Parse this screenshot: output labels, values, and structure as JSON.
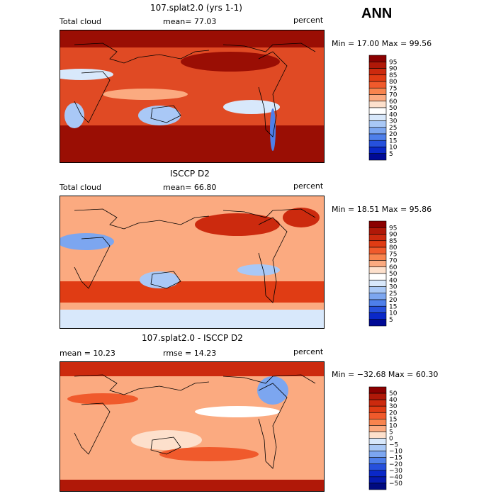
{
  "season": "ANN",
  "chart_data": [
    {
      "type": "heatmap",
      "title": "107.splat2.0 (yrs 1-1)",
      "variable": "Total cloud",
      "stat_left": "mean=  77.03",
      "units": "percent",
      "minmax": "Min =  17.00 Max =  99.56",
      "min": 17.0,
      "max": 99.56,
      "mean": 77.03,
      "colorbar_levels": [
        "95",
        "90",
        "85",
        "80",
        "75",
        "70",
        "60",
        "50",
        "40",
        "30",
        "25",
        "20",
        "15",
        "10",
        "5"
      ],
      "colorbar_colors": [
        "#8b0000",
        "#b01808",
        "#cc2a0e",
        "#e03c14",
        "#f05a2c",
        "#f8844e",
        "#fbaa80",
        "#fde0cc",
        "#ffffff",
        "#d8e8fb",
        "#a9c8f6",
        "#7ca6f0",
        "#4e7fea",
        "#2650dc",
        "#0a28c8",
        "#000a96"
      ],
      "field": "model"
    },
    {
      "type": "heatmap",
      "title": "ISCCP D2",
      "variable": "Total cloud",
      "stat_left": "mean=  66.80",
      "units": "percent",
      "minmax": "Min =  18.51 Max =  95.86",
      "min": 18.51,
      "max": 95.86,
      "mean": 66.8,
      "colorbar_levels": [
        "95",
        "90",
        "85",
        "80",
        "75",
        "70",
        "60",
        "50",
        "40",
        "30",
        "25",
        "20",
        "15",
        "10",
        "5"
      ],
      "colorbar_colors": [
        "#8b0000",
        "#b01808",
        "#cc2a0e",
        "#e03c14",
        "#f05a2c",
        "#f8844e",
        "#fbaa80",
        "#fde0cc",
        "#ffffff",
        "#d8e8fb",
        "#a9c8f6",
        "#7ca6f0",
        "#4e7fea",
        "#2650dc",
        "#0a28c8",
        "#000a96"
      ],
      "field": "obs"
    },
    {
      "type": "heatmap",
      "title": "107.splat2.0 - ISCCP D2",
      "variable": "",
      "stat_left": "mean =  10.23",
      "stat_mid": "rmse =  14.23",
      "units": "percent",
      "minmax": "Min = −32.68 Max =  60.30",
      "min": -32.68,
      "max": 60.3,
      "mean": 10.23,
      "rmse": 14.23,
      "colorbar_levels": [
        "50",
        "40",
        "30",
        "20",
        "15",
        "10",
        "5",
        "0",
        "−5",
        "−10",
        "−15",
        "−20",
        "−30",
        "−40",
        "−50"
      ],
      "colorbar_colors": [
        "#8b0000",
        "#b01808",
        "#cc2a0e",
        "#e03c14",
        "#f05a2c",
        "#f8844e",
        "#fbaa80",
        "#fde0cc",
        "#d8e8fb",
        "#a9c8f6",
        "#7ca6f0",
        "#4e7fea",
        "#2650dc",
        "#0a28c8",
        "#061ab0",
        "#000a80"
      ],
      "field": "diff"
    }
  ]
}
